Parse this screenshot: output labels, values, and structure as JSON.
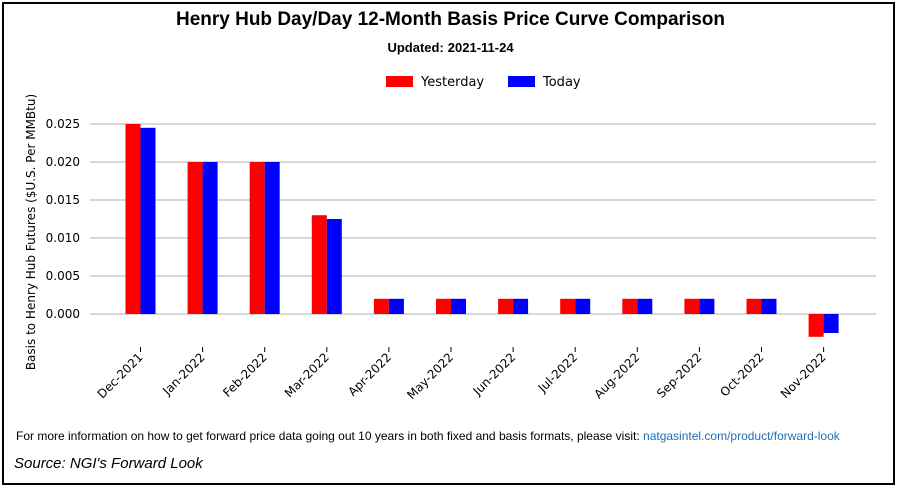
{
  "title": "Henry Hub Day/Day 12-Month Basis Price Curve Comparison",
  "subtitle": {
    "label": "Updated:",
    "date": "2021-11-24"
  },
  "legend": {
    "position": "top-center"
  },
  "colors": {
    "yesterday": "#ff0000",
    "today": "#0000ff",
    "grid": "#b0b0b0",
    "link": "#1f6fb2"
  },
  "chart_data": {
    "type": "bar",
    "ylabel": "Basis to Henry Hub Futures ($U.S. Per MMBtu)",
    "xlabel": "",
    "ylim": [
      -0.004,
      0.0265
    ],
    "yticks": [
      "0.000",
      "0.005",
      "0.010",
      "0.015",
      "0.020",
      "0.025"
    ],
    "grid": true,
    "categories": [
      "Dec-2021",
      "Jan-2022",
      "Feb-2022",
      "Mar-2022",
      "Apr-2022",
      "May-2022",
      "Jun-2022",
      "Jul-2022",
      "Aug-2022",
      "Sep-2022",
      "Oct-2022",
      "Nov-2022"
    ],
    "series": [
      {
        "name": "Yesterday",
        "values": [
          0.025,
          0.02,
          0.02,
          0.013,
          0.002,
          0.002,
          0.002,
          0.002,
          0.002,
          0.002,
          0.002,
          -0.003
        ]
      },
      {
        "name": "Today",
        "values": [
          0.0245,
          0.02,
          0.02,
          0.0125,
          0.002,
          0.002,
          0.002,
          0.002,
          0.002,
          0.002,
          0.002,
          -0.0025
        ]
      }
    ]
  },
  "footer": {
    "note": "For more information on how to get forward price data going out 10 years in both fixed and basis formats, please visit:",
    "link": "natgasintel.com/product/forward-look",
    "source": "Source: NGI's Forward Look"
  }
}
